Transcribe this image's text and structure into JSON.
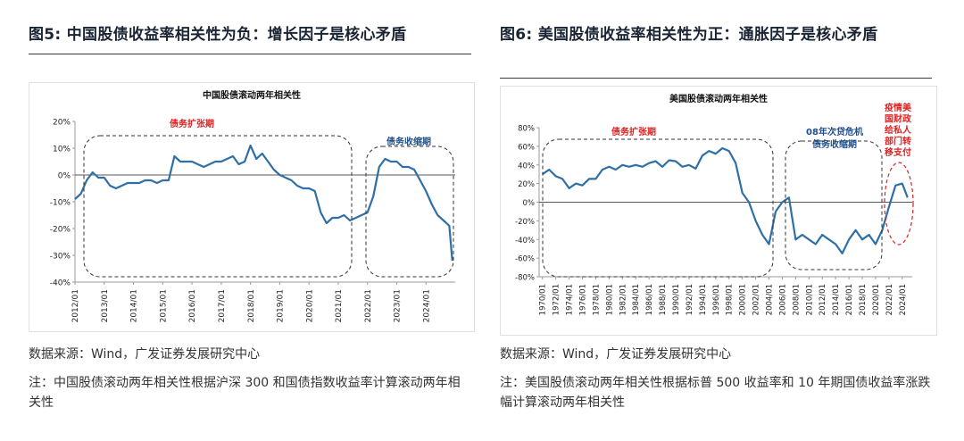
{
  "left": {
    "figure_title": "图5: 中国股债收益率相关性为负：增长因子是核心矛盾",
    "source": "数据来源：Wind，广发证券发展研究中心",
    "note": "注：中国股债滚动两年相关性根据沪深 300 和国债指数收益率计算滚动两年相关性",
    "chart_data": {
      "type": "line",
      "title": "中国股债滚动两年相关性",
      "ylim": [
        -40,
        20
      ],
      "yticks": [
        "20%",
        "10%",
        "0%",
        "-10%",
        "-20%",
        "-30%",
        "-40%"
      ],
      "xticks": [
        "2012/01",
        "2013/01",
        "2014/01",
        "2015/01",
        "2016/01",
        "2017/01",
        "2018/01",
        "2019/01",
        "2020/01",
        "2021/01",
        "2022/01",
        "2023/01",
        "2024/01"
      ],
      "annotations": [
        "债务扩张期",
        "债务收缩期"
      ],
      "series": [
        {
          "x": [
            2012.0,
            2012.2,
            2012.4,
            2012.6,
            2012.8,
            2013.0,
            2013.2,
            2013.4,
            2013.6,
            2013.8,
            2014.0,
            2014.2,
            2014.4,
            2014.6,
            2014.8,
            2015.0,
            2015.2,
            2015.4,
            2015.6,
            2015.8,
            2016.0,
            2016.2,
            2016.4,
            2016.6,
            2016.8,
            2017.0,
            2017.2,
            2017.4,
            2017.6,
            2017.8,
            2018.0,
            2018.2,
            2018.4,
            2018.6,
            2018.8,
            2019.0,
            2019.2,
            2019.4,
            2019.6,
            2019.8,
            2020.0,
            2020.2,
            2020.4,
            2020.6,
            2020.8,
            2021.0,
            2021.2,
            2021.4,
            2021.6,
            2021.8,
            2022.0,
            2022.2,
            2022.4,
            2022.6,
            2022.8,
            2023.0,
            2023.2,
            2023.4,
            2023.6,
            2023.8,
            2024.0,
            2024.2,
            2024.4,
            2024.6,
            2024.8,
            2024.9
          ],
          "values": [
            -9,
            -7,
            -2,
            1,
            -1,
            -1,
            -4,
            -5,
            -4,
            -3,
            -3,
            -3,
            -2,
            -2,
            -3,
            -2,
            -2,
            7,
            5,
            5,
            5,
            4,
            3,
            4,
            5,
            5,
            6,
            7,
            4,
            5,
            11,
            6,
            8,
            5,
            2,
            0,
            -1,
            -2,
            -4,
            -5,
            -5,
            -6,
            -14,
            -18,
            -16,
            -16,
            -15,
            -17,
            -16,
            -15,
            -14,
            -8,
            3,
            6,
            5,
            5,
            3,
            3,
            2,
            -2,
            -6,
            -11,
            -15,
            -17,
            -19,
            -32
          ]
        }
      ]
    }
  },
  "right": {
    "figure_title": "图6: 美国股债收益率相关性为正：通胀因子是核心矛盾",
    "source": "数据来源：Wind，广发证券发展研究中心",
    "note": "注：美国股债滚动两年相关性根据标普 500 收益率和 10 年期国债收益率涨跌幅计算滚动两年相关性",
    "chart_data": {
      "type": "line",
      "title": "美国股债滚动两年相关性",
      "ylim": [
        -80,
        80
      ],
      "yticks": [
        "80%",
        "60%",
        "40%",
        "20%",
        "0%",
        "-20%",
        "-40%",
        "-60%",
        "-80%"
      ],
      "xticks": [
        "1970/01",
        "1972/01",
        "1974/01",
        "1976/01",
        "1978/01",
        "1980/01",
        "1982/01",
        "1984/01",
        "1986/01",
        "1988/01",
        "1990/01",
        "1992/01",
        "1994/01",
        "1996/01",
        "1998/01",
        "2000/01",
        "2002/01",
        "2004/01",
        "2006/01",
        "2008/01",
        "2010/01",
        "2012/01",
        "2014/01",
        "2016/01",
        "2018/01",
        "2020/01",
        "2022/01",
        "2024/01"
      ],
      "annotations": [
        "债务扩张期",
        "08年次贷危机 债务收缩期",
        "疫情美国财政给私人部门转移支付"
      ],
      "series": [
        {
          "x": [
            1970,
            1971,
            1972,
            1973,
            1974,
            1975,
            1976,
            1977,
            1978,
            1979,
            1980,
            1981,
            1982,
            1983,
            1984,
            1985,
            1986,
            1987,
            1988,
            1989,
            1990,
            1991,
            1992,
            1993,
            1994,
            1995,
            1996,
            1997,
            1998,
            1999,
            2000,
            2001,
            2002,
            2003,
            2004,
            2005,
            2006,
            2007,
            2008,
            2009,
            2010,
            2011,
            2012,
            2013,
            2014,
            2015,
            2016,
            2017,
            2018,
            2019,
            2020,
            2021,
            2022,
            2023,
            2024,
            2024.8
          ],
          "values": [
            30,
            35,
            28,
            25,
            15,
            20,
            18,
            25,
            25,
            35,
            38,
            35,
            40,
            38,
            40,
            38,
            42,
            44,
            38,
            45,
            44,
            38,
            40,
            36,
            50,
            55,
            52,
            58,
            55,
            42,
            10,
            0,
            -20,
            -35,
            -45,
            -10,
            0,
            5,
            -40,
            -35,
            -40,
            -45,
            -35,
            -40,
            -45,
            -55,
            -40,
            -30,
            -40,
            -35,
            -45,
            -30,
            -5,
            18,
            20,
            5
          ]
        }
      ]
    }
  }
}
